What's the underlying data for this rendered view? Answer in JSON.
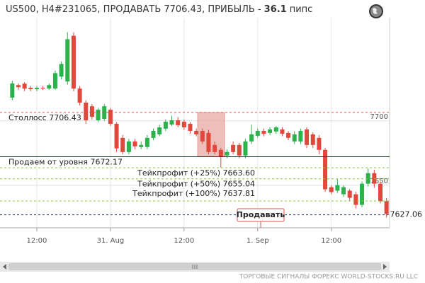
{
  "chart_data": {
    "type": "candlestick",
    "title": "US500, H4#231065, ПРОДАВАТЬ 7706.43, ПРИБЫЛЬ -",
    "profit": 36.1,
    "profit_unit": "пипс",
    "footer": "ТОРГОВЫЕ СИГНАЛЫ ФОРЕКС WORLD-STOCKS.RU LLC",
    "button": "Продавать",
    "up_color": "#2bb24c",
    "down_color": "#e0483b",
    "xlim": [
      -6,
      57.5
    ],
    "xticks": [
      {
        "value": 0,
        "label": "12:00"
      },
      {
        "value": 12,
        "label": "31. Aug"
      },
      {
        "value": 24,
        "label": "12:00"
      },
      {
        "value": 36,
        "label": "1. Sep"
      },
      {
        "value": 48,
        "label": "12:00"
      }
    ],
    "ylim": [
      7617,
      7780
    ],
    "yticks": [
      7650,
      7700
    ],
    "grid": true,
    "levels": [
      {
        "label": "Столлосс 7706.43",
        "value": 7706.43,
        "color": "#d9534f",
        "dash": true
      },
      {
        "label": "Продаем от уровня 7672.17",
        "value": 7672.17,
        "color": "#1f2fa8",
        "dash": false
      },
      {
        "label": "Тейкпрофит (+25%) 7663.60",
        "value": 7663.6,
        "color": "#8cc63f",
        "dash": true
      },
      {
        "label": "Тейкпрофит (+50%) 7655.04",
        "value": 7655.04,
        "color": "#8cc63f",
        "dash": true
      },
      {
        "label": "Тейкпрофит (+100%) 7637.81",
        "value": 7637.81,
        "color": "#8cc63f",
        "dash": true
      },
      {
        "label": "7627.06",
        "value": 7627.06,
        "color": "#1f2fa8",
        "dash": true
      }
    ],
    "x": [
      -4,
      -3,
      -2,
      -1,
      0,
      1,
      2,
      3,
      4,
      5,
      6,
      7,
      8,
      9,
      10,
      11,
      12,
      13,
      14,
      15,
      16,
      17,
      18,
      19,
      20,
      21,
      22,
      23,
      24,
      25,
      26,
      27,
      28,
      29,
      30,
      31,
      32,
      33,
      34,
      35,
      36,
      37,
      38,
      39,
      40,
      41,
      42,
      43,
      44,
      45,
      46,
      47,
      48,
      49,
      50,
      51,
      52,
      53,
      54,
      55,
      56,
      57
    ],
    "open": [
      7718,
      7727.7,
      7728.8,
      7725.6,
      7724.5,
      7725.6,
      7725,
      7725,
      7734.3,
      7730.5,
      7766,
      7725,
      7714.1,
      7711.3,
      7700.4,
      7701.5,
      7708.6,
      7697.7,
      7686.8,
      7675.8,
      7684,
      7679.7,
      7679.7,
      7686.8,
      7689.5,
      7693.9,
      7697.1,
      7700.4,
      7699.3,
      7697.7,
      7692.2,
      7692.2,
      7690.6,
      7681.3,
      7677.5,
      7673.1,
      7681.3,
      7681.3,
      7673.1,
      7684,
      7688.4,
      7692.2,
      7690.6,
      7691.7,
      7693.3,
      7690.6,
      7684,
      7684,
      7693.3,
      7689.5,
      7686.8,
      7677.5,
      7648.5,
      7645.8,
      7643,
      7645.8,
      7643,
      7634.8,
      7651.2,
      7659.4,
      7651.2,
      7637.6
    ],
    "high": [
      7731,
      7729,
      7730,
      7727,
      7727,
      7727,
      7729,
      7739,
      7746,
      7768.7,
      7768.7,
      7727,
      7716,
      7713,
      7710,
      7713,
      7710,
      7699,
      7689,
      7686,
      7686,
      7684,
      7689,
      7694,
      7697,
      7701,
      7704,
      7703,
      7701,
      7699,
      7694,
      7694,
      7693,
      7684,
      7679,
      7678,
      7684,
      7683,
      7686,
      7697,
      7694,
      7694,
      7695,
      7696,
      7695,
      7692,
      7692,
      7694,
      7695,
      7691,
      7689,
      7679,
      7650,
      7655,
      7650,
      7647,
      7645,
      7653,
      7663,
      7662,
      7653,
      7640
    ],
    "low": [
      7716,
      7724,
      7723,
      7723,
      7723,
      7724,
      7724,
      7724,
      7732,
      7728,
      7723,
      7712,
      7697.7,
      7701,
      7699,
      7700,
      7696,
      7675.8,
      7674,
      7674,
      7678,
      7678,
      7678,
      7685,
      7688,
      7692,
      7696,
      7695,
      7693,
      7690,
      7688,
      7682,
      7674,
      7674,
      7663.8,
      7671,
      7674,
      7671,
      7671,
      7682,
      7687,
      7688,
      7689,
      7690,
      7688,
      7685,
      7682,
      7682,
      7679,
      7679,
      7674,
      7645,
      7643,
      7644,
      7641,
      7638,
      7632,
      7633,
      7649,
      7648,
      7636,
      7625
    ],
    "close": [
      7729,
      7726.1,
      7725,
      7724.5,
      7725.6,
      7725,
      7727.7,
      7737,
      7744.1,
      7763.3,
      7725,
      7714.1,
      7700.4,
      7703.1,
      7708.6,
      7711.3,
      7697.7,
      7678.6,
      7675.8,
      7684,
      7680.2,
      7681.3,
      7686.8,
      7692.2,
      7694.9,
      7699.3,
      7700.4,
      7696.6,
      7694.9,
      7692.2,
      7689.5,
      7684,
      7675.8,
      7675.8,
      7672,
      7675.8,
      7675.8,
      7673.1,
      7684,
      7689.5,
      7692.2,
      7690,
      7693.3,
      7694.9,
      7690,
      7686.8,
      7689.5,
      7692.2,
      7681.3,
      7681.3,
      7677.5,
      7646.9,
      7644.7,
      7650.1,
      7648.5,
      7640.3,
      7634.8,
      7651.2,
      7659.4,
      7651.2,
      7637.6,
      7627.7
    ]
  }
}
